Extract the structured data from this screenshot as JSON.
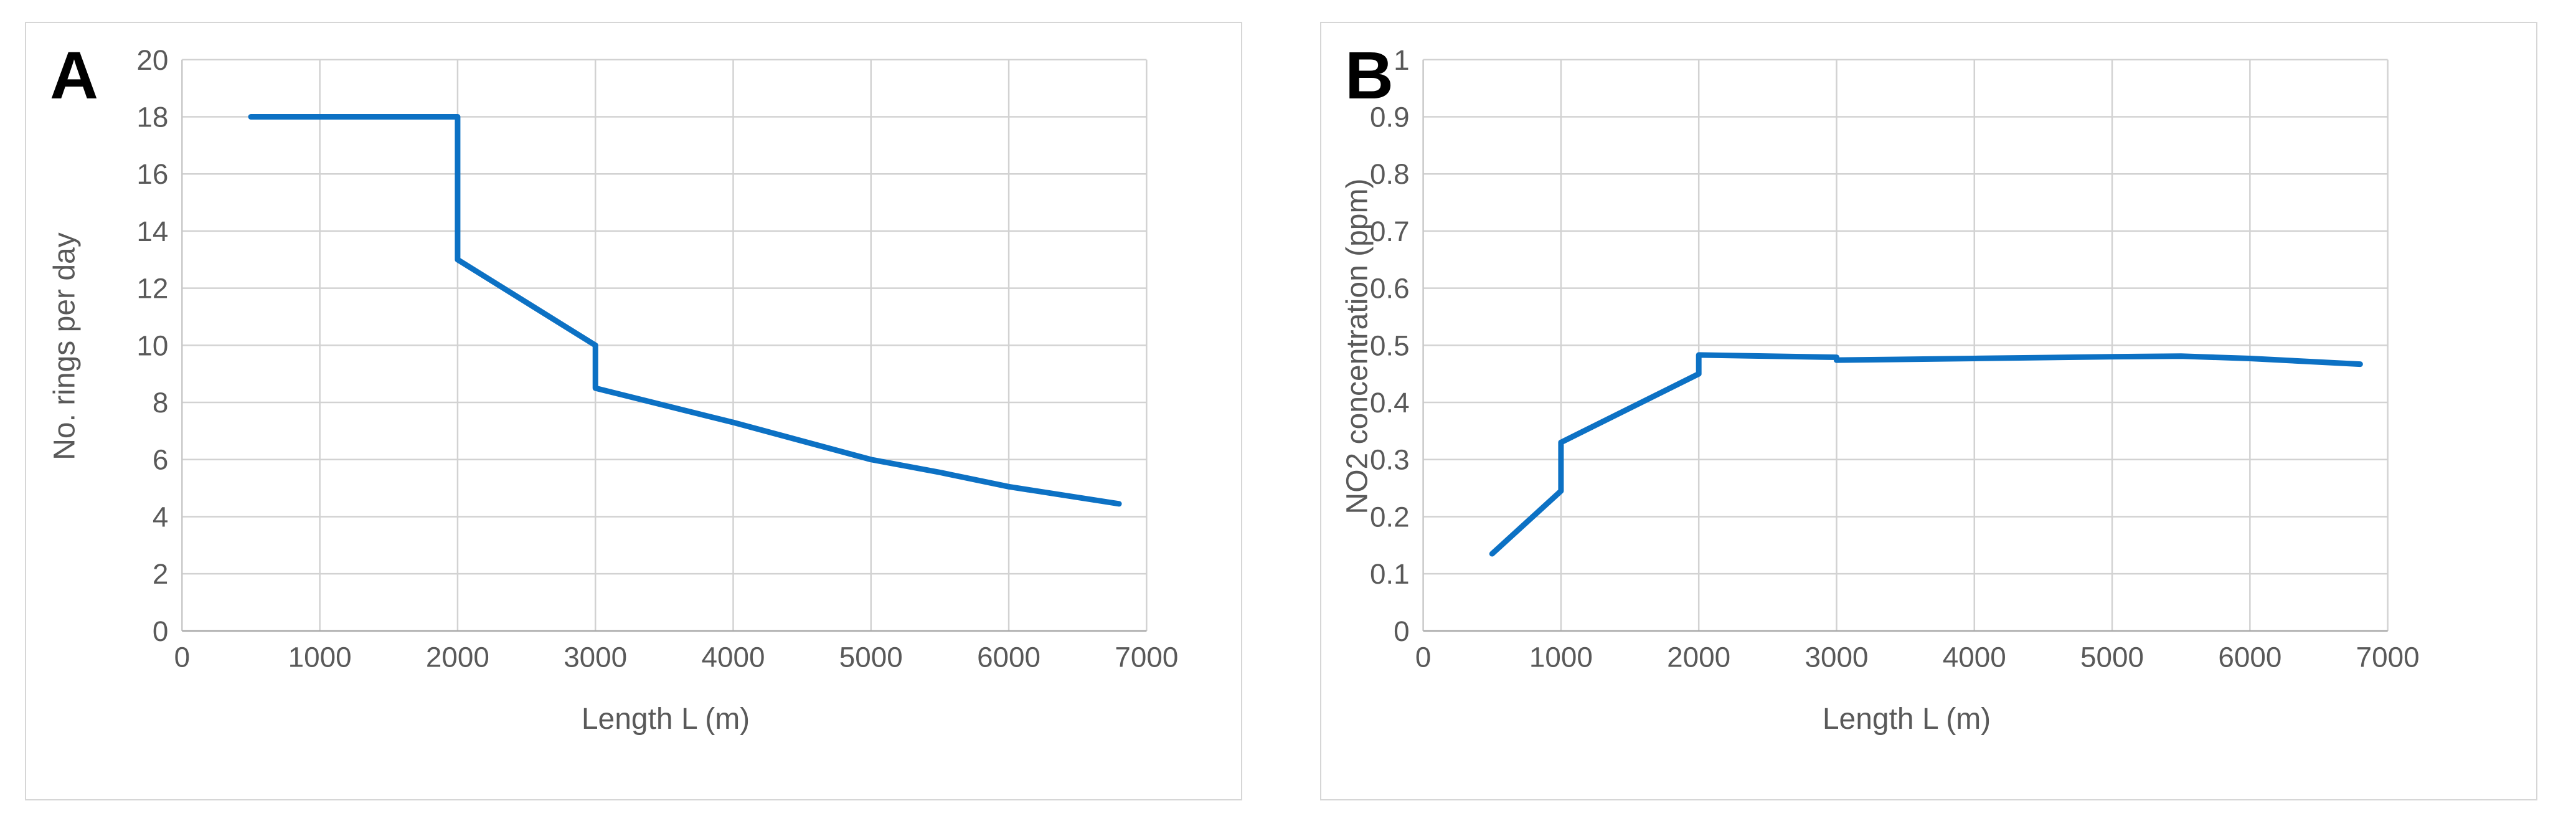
{
  "palette": {
    "line": "#0C71C4",
    "grid": "#D2D2D2",
    "axis": "#A8A8A8",
    "tick_text": "#595959",
    "panel_border": "#D6D6D6",
    "panel_letter": "#000000"
  },
  "chart_data": [
    {
      "type": "line",
      "panel_label": "A",
      "xlabel": "Length L (m)",
      "ylabel": "No. rings per day",
      "xlim": [
        0,
        7000
      ],
      "ylim": [
        0,
        20
      ],
      "x_ticks": [
        0,
        1000,
        2000,
        3000,
        4000,
        5000,
        6000,
        7000
      ],
      "y_ticks": [
        0,
        2,
        4,
        6,
        8,
        10,
        12,
        14,
        16,
        18,
        20
      ],
      "grid": true,
      "legend": false,
      "line_color": "#0C71C4",
      "points": [
        [
          500,
          18
        ],
        [
          2000,
          18
        ],
        [
          2000,
          13
        ],
        [
          3000,
          10
        ],
        [
          3000,
          8.5
        ],
        [
          4000,
          7.3
        ],
        [
          5000,
          6
        ],
        [
          5500,
          5.55
        ],
        [
          6000,
          5.05
        ],
        [
          6800,
          4.45
        ]
      ]
    },
    {
      "type": "line",
      "panel_label": "B",
      "xlabel": "Length L (m)",
      "ylabel": "NO2 concentration (ppm)",
      "xlim": [
        0,
        7000
      ],
      "ylim": [
        0,
        1
      ],
      "x_ticks": [
        0,
        1000,
        2000,
        3000,
        4000,
        5000,
        6000,
        7000
      ],
      "y_ticks": [
        0,
        0.1,
        0.2,
        0.3,
        0.4,
        0.5,
        0.6,
        0.7,
        0.8,
        0.9,
        1
      ],
      "grid": true,
      "legend": false,
      "line_color": "#0C71C4",
      "points": [
        [
          500,
          0.135
        ],
        [
          1000,
          0.245
        ],
        [
          1000,
          0.33
        ],
        [
          2000,
          0.45
        ],
        [
          2000,
          0.483
        ],
        [
          3000,
          0.479
        ],
        [
          3000,
          0.474
        ],
        [
          4000,
          0.477
        ],
        [
          5000,
          0.48
        ],
        [
          5500,
          0.481
        ],
        [
          6000,
          0.477
        ],
        [
          6800,
          0.467
        ]
      ]
    }
  ]
}
